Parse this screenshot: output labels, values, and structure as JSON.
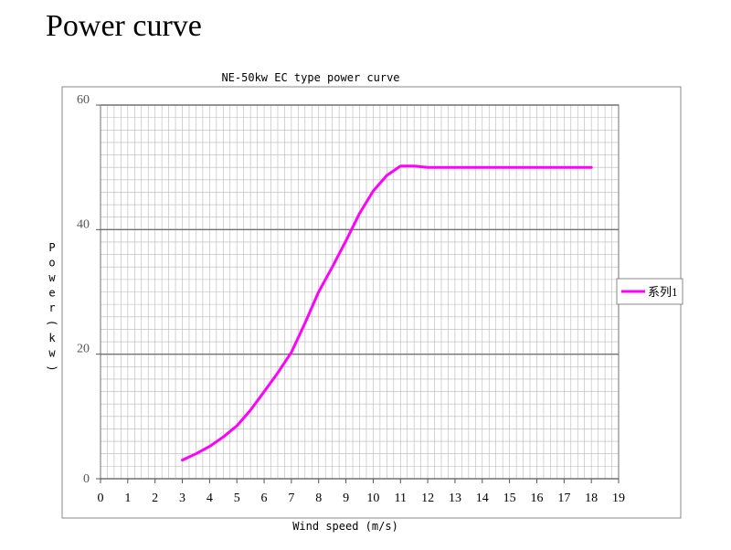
{
  "page": {
    "heading": "Power curve"
  },
  "chart_data": {
    "type": "line",
    "title": "NE-50kw EC type power curve",
    "xlabel": "Wind speed (m/s)",
    "ylabel": "Power(kw)",
    "xlim": [
      0,
      19
    ],
    "ylim": [
      0,
      60
    ],
    "x_ticks": [
      "0",
      "1",
      "2",
      "3",
      "4",
      "5",
      "6",
      "7",
      "8",
      "9",
      "10",
      "11",
      "12",
      "13",
      "14",
      "15",
      "16",
      "17",
      "18",
      "19"
    ],
    "y_ticks": [
      "0",
      "20",
      "40",
      "60"
    ],
    "grid": true,
    "legend_position": "right",
    "series": [
      {
        "name": "系列1",
        "color": "#ff00ff",
        "x": [
          3,
          3.5,
          4,
          4.5,
          5,
          5.5,
          6,
          6.5,
          7,
          7.5,
          8,
          8.5,
          9,
          9.5,
          10,
          10.5,
          11,
          11.5,
          12,
          13,
          14,
          15,
          16,
          17,
          18
        ],
        "y": [
          3,
          4,
          5.2,
          6.7,
          8.5,
          11,
          14,
          17,
          20.3,
          25,
          30,
          34,
          38.2,
          42.6,
          46.2,
          48.7,
          50.2,
          50.2,
          50,
          50,
          50,
          50,
          50,
          50,
          50
        ]
      }
    ]
  }
}
